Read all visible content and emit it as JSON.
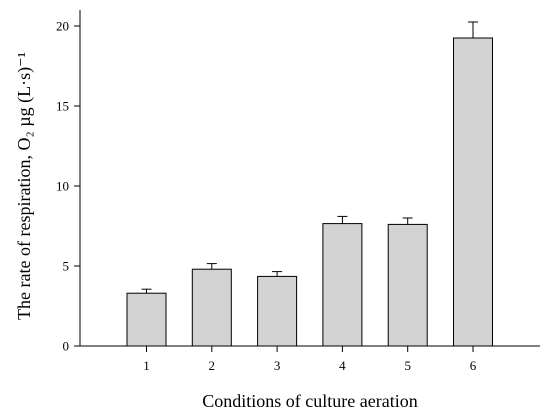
{
  "chart_data": {
    "type": "bar",
    "categories": [
      "1",
      "2",
      "3",
      "4",
      "5",
      "6"
    ],
    "series": [
      {
        "values": [
          3.3,
          4.8,
          4.35,
          7.65,
          7.6,
          19.25
        ],
        "errors": [
          0.25,
          0.35,
          0.3,
          0.45,
          0.4,
          1.0
        ]
      }
    ],
    "xlabel": "Conditions of culture aeration",
    "ylabel": "The rate of respiration, O₂ µg (L·s)⁻¹",
    "ylim": [
      0,
      21
    ],
    "yticks": [
      "0",
      "5",
      "10",
      "15",
      "20"
    ],
    "grid": false,
    "bar_color": "#d3d3d3",
    "edge_color": "#000000"
  }
}
